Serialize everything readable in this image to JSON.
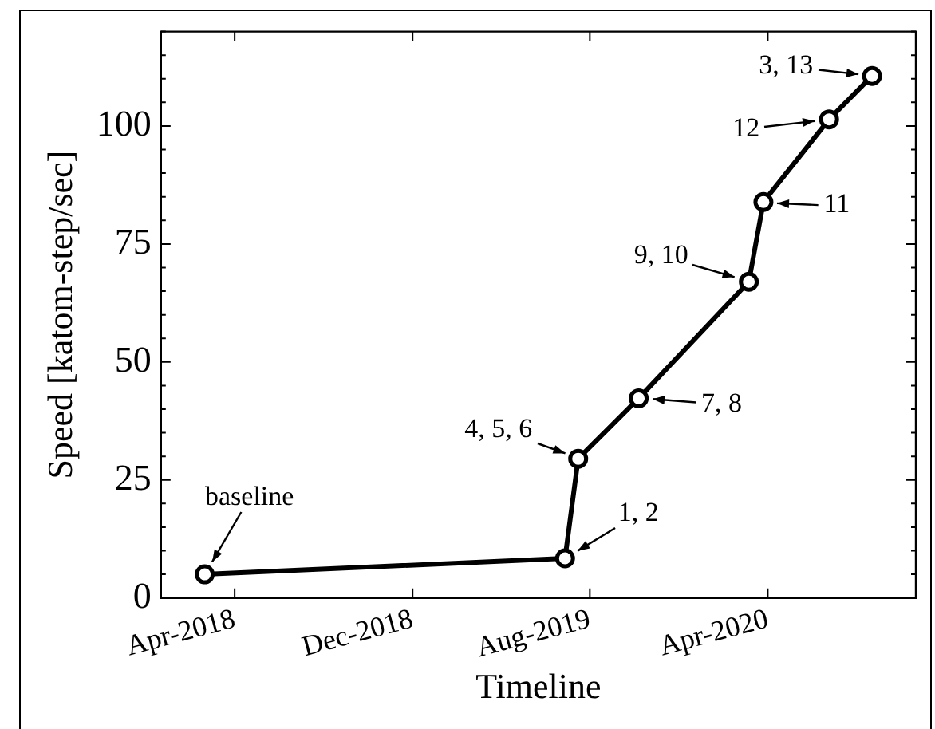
{
  "chart_data": {
    "type": "line",
    "xlabel": "Timeline",
    "ylabel": "Speed [katom-step/sec]",
    "x": [
      "2018-02-19",
      "2019-06-28",
      "2019-07-16",
      "2019-10-07",
      "2020-03-06",
      "2020-03-26",
      "2020-06-24",
      "2020-08-22"
    ],
    "values": [
      5.0,
      8.4,
      29.5,
      42.3,
      67,
      83.9,
      101.4,
      110.6
    ],
    "color": "#000000",
    "marker": "circle",
    "line_style": "solid",
    "grid": false,
    "legend": false,
    "xlim": [
      "2017-12-21",
      "2020-10-21"
    ],
    "xticks": [
      {
        "value": "2018-04-01",
        "label": "Apr-2018"
      },
      {
        "value": "2018-12-01",
        "label": "Dec-2018"
      },
      {
        "value": "2019-08-01",
        "label": "Aug-2019"
      },
      {
        "value": "2020-04-01",
        "label": "Apr-2020"
      }
    ],
    "ylim": [
      0,
      120
    ],
    "yticks": [
      0,
      {
        "value": 5,
        "label": null
      },
      {
        "value": 10,
        "label": null
      },
      {
        "value": 15,
        "label": null
      },
      {
        "value": 20,
        "label": null
      },
      25,
      {
        "value": 30,
        "label": null
      },
      {
        "value": 35,
        "label": null
      },
      {
        "value": 40,
        "label": null
      },
      {
        "value": 45,
        "label": null
      },
      50,
      {
        "value": 55,
        "label": null
      },
      {
        "value": 60,
        "label": null
      },
      {
        "value": 65,
        "label": null
      },
      {
        "value": 70,
        "label": null
      },
      75,
      {
        "value": 80,
        "label": null
      },
      {
        "value": 85,
        "label": null
      },
      {
        "value": 90,
        "label": null
      },
      {
        "value": 95,
        "label": null
      },
      100,
      {
        "value": 105,
        "label": null
      },
      {
        "value": 110,
        "label": null
      },
      {
        "value": 115,
        "label": null
      },
      {
        "value": 120,
        "label": null
      }
    ],
    "annotations": [
      {
        "text": "baseline",
        "x": "2018-02-19",
        "y": 5.0
      },
      {
        "text": "1, 2",
        "x": "2019-06-28",
        "y": 8.4
      },
      {
        "text": "4, 5, 6",
        "x": "2019-07-16",
        "y": 29.5
      },
      {
        "text": "7, 8",
        "x": "2019-10-07",
        "y": 42.3
      },
      {
        "text": "9, 10",
        "x": "2020-03-06",
        "y": 67
      },
      {
        "text": "11",
        "x": "2020-03-26",
        "y": 83.9
      },
      {
        "text": "12",
        "x": "2020-06-24",
        "y": 101.4
      },
      {
        "text": "3, 13",
        "x": "2020-08-22",
        "y": 110.6
      }
    ]
  }
}
